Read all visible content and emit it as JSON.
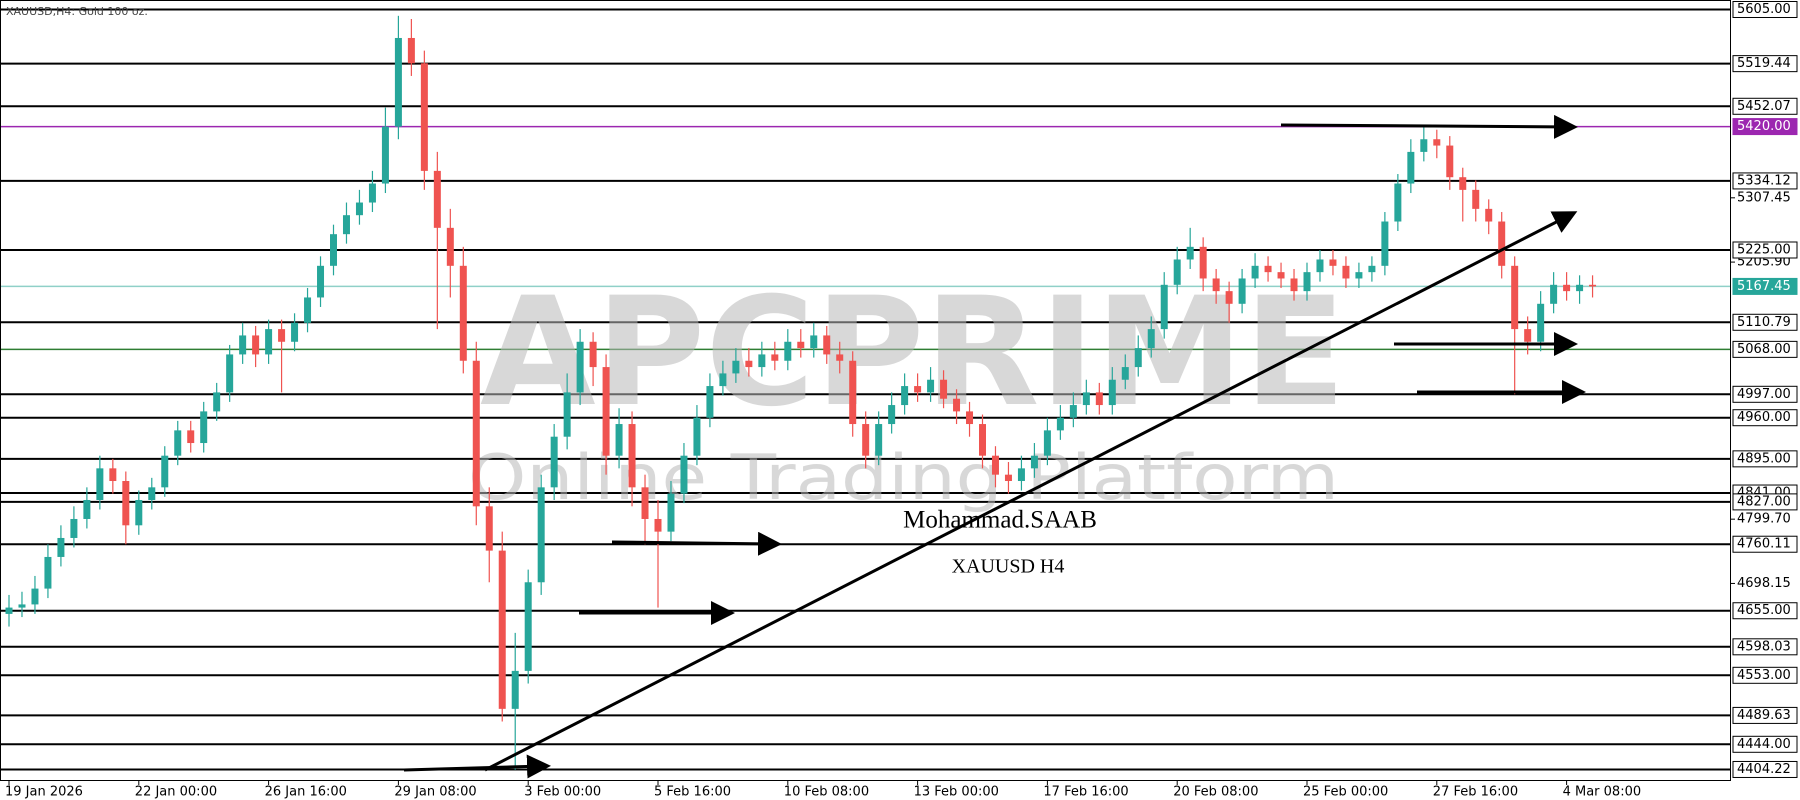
{
  "chart_data": {
    "type": "candlestick",
    "title": "XAUUSD,H4:  Gold 100 oz.",
    "watermark": {
      "title": "APCPRIME",
      "subtitle": "Online Trading Platform"
    },
    "annotations": [
      "Mohammad.SAAB",
      "XAUUSD H4"
    ],
    "up_color": "#26a69a",
    "down_color": "#ef5350",
    "categories": [
      "19 Jan 2026",
      null,
      null,
      null,
      null,
      null,
      null,
      null,
      null,
      null,
      "22 Jan 00:00",
      null,
      null,
      null,
      null,
      null,
      null,
      null,
      null,
      null,
      "26 Jan 16:00",
      null,
      null,
      null,
      null,
      null,
      null,
      null,
      null,
      null,
      "29 Jan 08:00",
      null,
      null,
      null,
      null,
      null,
      null,
      null,
      null,
      null,
      "3 Feb 00:00",
      null,
      null,
      null,
      null,
      null,
      null,
      null,
      null,
      null,
      "5 Feb 16:00",
      null,
      null,
      null,
      null,
      null,
      null,
      null,
      null,
      null,
      "10 Feb 08:00",
      null,
      null,
      null,
      null,
      null,
      null,
      null,
      null,
      null,
      "13 Feb 00:00",
      null,
      null,
      null,
      null,
      null,
      null,
      null,
      null,
      null,
      "17 Feb 16:00",
      null,
      null,
      null,
      null,
      null,
      null,
      null,
      null,
      null,
      "20 Feb 08:00",
      null,
      null,
      null,
      null,
      null,
      null,
      null,
      null,
      null,
      "25 Feb 00:00",
      null,
      null,
      null,
      null,
      null,
      null,
      null,
      null,
      null,
      "27 Feb 16:00",
      null,
      null,
      null,
      null,
      null,
      null,
      null,
      null,
      null,
      "4 Mar 08:00",
      null,
      null
    ],
    "open": [
      4650,
      4660,
      4665,
      4690,
      4740,
      4770,
      4800,
      4830,
      4880,
      4860,
      4790,
      4830,
      4850,
      4900,
      4940,
      4920,
      4970,
      5000,
      5060,
      5090,
      5060,
      5100,
      5080,
      5110,
      5150,
      5200,
      5250,
      5280,
      5300,
      5330,
      5420,
      5560,
      5520,
      5350,
      5260,
      5200,
      5050,
      4820,
      4750,
      4500,
      4560,
      4700,
      4850,
      4930,
      5000,
      5080,
      5040,
      4900,
      4950,
      4850,
      4800,
      4780,
      4840,
      4900,
      4960,
      5010,
      5030,
      5050,
      5040,
      5060,
      5050,
      5080,
      5070,
      5090,
      5060,
      5050,
      4950,
      4900,
      4950,
      4980,
      5010,
      5000,
      5020,
      4990,
      4970,
      4950,
      4900,
      4870,
      4860,
      4880,
      4900,
      4940,
      4960,
      4980,
      5000,
      4980,
      5020,
      5040,
      5070,
      5100,
      5170,
      5210,
      5230,
      5180,
      5160,
      5140,
      5180,
      5200,
      5190,
      5180,
      5160,
      5190,
      5210,
      5200,
      5180,
      5190,
      5200,
      5270,
      5330,
      5380,
      5400,
      5390,
      5340,
      5320,
      5290,
      5270,
      5200,
      5100,
      5080,
      5140,
      5170,
      5160,
      5170
    ],
    "high": [
      4680,
      4685,
      4710,
      4760,
      4790,
      4820,
      4850,
      4900,
      4895,
      4875,
      4845,
      4865,
      4915,
      4955,
      4955,
      4985,
      5015,
      5075,
      5110,
      5105,
      5115,
      5115,
      5125,
      5165,
      5215,
      5265,
      5300,
      5320,
      5350,
      5450,
      5595,
      5590,
      5540,
      5380,
      5290,
      5230,
      5080,
      4850,
      4780,
      4620,
      4720,
      4870,
      4950,
      5030,
      5100,
      5095,
      5060,
      4975,
      4970,
      4870,
      4830,
      4860,
      4920,
      4980,
      5030,
      5050,
      5070,
      5070,
      5080,
      5080,
      5100,
      5100,
      5110,
      5105,
      5080,
      5065,
      4970,
      4970,
      5000,
      5030,
      5030,
      5040,
      5035,
      5005,
      4985,
      4965,
      4915,
      4890,
      4900,
      4920,
      4960,
      4980,
      5000,
      5020,
      5015,
      5040,
      5060,
      5090,
      5120,
      5190,
      5230,
      5260,
      5245,
      5195,
      5175,
      5195,
      5220,
      5215,
      5205,
      5195,
      5205,
      5225,
      5225,
      5215,
      5205,
      5215,
      5285,
      5345,
      5400,
      5420,
      5415,
      5405,
      5355,
      5335,
      5305,
      5285,
      5215,
      5120,
      5160,
      5190,
      5190,
      5185,
      5185
    ],
    "low": [
      4630,
      4645,
      4650,
      4675,
      4725,
      4755,
      4785,
      4815,
      4840,
      4760,
      4775,
      4815,
      4835,
      4885,
      4905,
      4905,
      4955,
      4985,
      5045,
      5040,
      5045,
      5000,
      5065,
      5095,
      5135,
      5185,
      5235,
      5265,
      5285,
      5315,
      5400,
      5500,
      5320,
      5100,
      5150,
      5030,
      4790,
      4700,
      4480,
      4404,
      4540,
      4680,
      4830,
      4910,
      4980,
      5010,
      4870,
      4880,
      4820,
      4760,
      4660,
      4765,
      4825,
      4885,
      4945,
      4995,
      5015,
      5025,
      5025,
      5035,
      5035,
      5055,
      5055,
      5045,
      5030,
      4930,
      4880,
      4885,
      4935,
      4965,
      4985,
      4985,
      4975,
      4950,
      4930,
      4880,
      4850,
      4840,
      4845,
      4865,
      4885,
      4925,
      4945,
      4965,
      4965,
      4965,
      5005,
      5025,
      5055,
      5085,
      5155,
      5195,
      5160,
      5140,
      5110,
      5125,
      5165,
      5175,
      5165,
      5145,
      5145,
      5175,
      5185,
      5165,
      5165,
      5175,
      5185,
      5255,
      5315,
      5365,
      5370,
      5320,
      5270,
      5270,
      5250,
      5180,
      4997,
      5060,
      5065,
      5125,
      5145,
      5140,
      5150
    ],
    "close": [
      4660,
      4665,
      4690,
      4740,
      4770,
      4800,
      4830,
      4880,
      4860,
      4790,
      4830,
      4850,
      4900,
      4940,
      4920,
      4970,
      5000,
      5060,
      5090,
      5060,
      5100,
      5080,
      5110,
      5150,
      5200,
      5250,
      5280,
      5300,
      5330,
      5420,
      5560,
      5520,
      5350,
      5260,
      5200,
      5050,
      4820,
      4750,
      4500,
      4560,
      4700,
      4850,
      4930,
      5000,
      5080,
      5040,
      4900,
      4950,
      4850,
      4800,
      4780,
      4840,
      4900,
      4960,
      5010,
      5030,
      5050,
      5040,
      5060,
      5050,
      5080,
      5070,
      5090,
      5060,
      5050,
      4950,
      4900,
      4950,
      4980,
      5010,
      5000,
      5020,
      4990,
      4970,
      4950,
      4900,
      4870,
      4860,
      4880,
      4900,
      4940,
      4960,
      4980,
      5000,
      4980,
      5020,
      5040,
      5070,
      5100,
      5170,
      5210,
      5230,
      5180,
      5160,
      5140,
      5180,
      5200,
      5190,
      5180,
      5160,
      5190,
      5210,
      5200,
      5180,
      5190,
      5200,
      5270,
      5330,
      5380,
      5400,
      5390,
      5340,
      5320,
      5290,
      5270,
      5200,
      5100,
      5080,
      5140,
      5170,
      5160,
      5170,
      5167.45
    ],
    "ylim": [
      4386,
      5620
    ],
    "yticks": [
      5307.45,
      {
        "value": 5205.9,
        "label": "5205.90"
      },
      {
        "value": 4799.7,
        "label": "4799.70"
      },
      4698.15
    ],
    "levels": [
      {
        "value": 5605,
        "label": "5605.00",
        "color": "#000000"
      },
      {
        "value": 5519.44,
        "label": "5519.44",
        "color": "#000000"
      },
      {
        "value": 5452.07,
        "label": "5452.07",
        "color": "#000000"
      },
      {
        "value": 5420,
        "label": "5420.00",
        "color": "#9c27b0",
        "label_color": "#9c27b0"
      },
      {
        "value": 5334.12,
        "label": "5334.12",
        "color": "#000000"
      },
      {
        "value": 5225,
        "label": "5225.00",
        "color": "#000000"
      },
      {
        "value": 5167.45,
        "label": "5167.45",
        "color": "#8fd0c8",
        "label_color": "#26a69a"
      },
      {
        "value": 5110.79,
        "label": "5110.79",
        "color": "#000000"
      },
      {
        "value": 5068,
        "label": "5068.00",
        "color": "#2e7d32"
      },
      {
        "value": 4997,
        "label": "4997.00",
        "color": "#000000"
      },
      {
        "value": 4960,
        "label": "4960.00",
        "color": "#000000"
      },
      {
        "value": 4895,
        "label": "4895.00",
        "color": "#000000"
      },
      {
        "value": 4841,
        "label": "4841.00",
        "color": "#000000"
      },
      {
        "value": 4827,
        "label": "4827.00",
        "color": "#000000"
      },
      {
        "value": 4760.11,
        "label": "4760.11",
        "color": "#000000"
      },
      {
        "value": 4655,
        "label": "4655.00",
        "color": "#000000"
      },
      {
        "value": 4598.03,
        "label": "4598.03",
        "color": "#000000"
      },
      {
        "value": 4553,
        "label": "4553.00",
        "color": "#000000"
      },
      {
        "value": 4489.63,
        "label": "4489.63",
        "color": "#000000"
      },
      {
        "value": 4444,
        "label": "4444.00",
        "color": "#000000"
      },
      {
        "value": 4404.22,
        "label": "4404.22",
        "color": "#000000"
      }
    ]
  }
}
